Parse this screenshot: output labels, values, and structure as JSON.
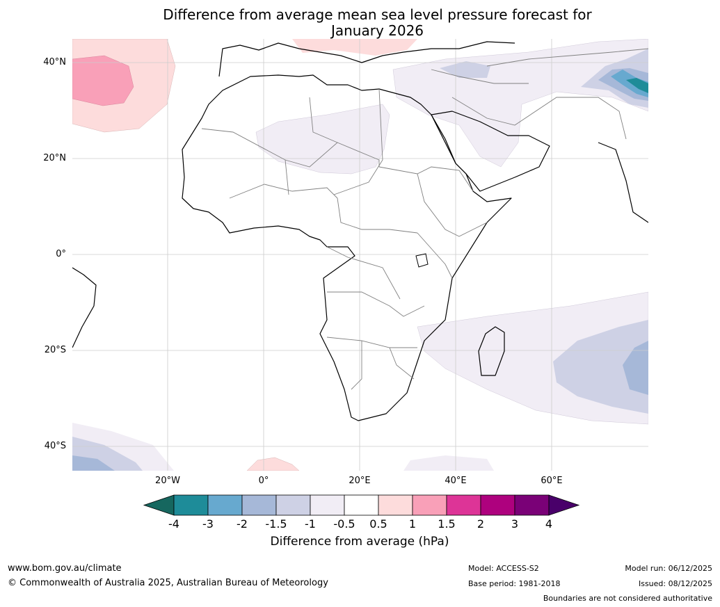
{
  "map": {
    "title_line1": "Difference from average mean sea level pressure forecast for",
    "title_line2": "January 2026",
    "lat_labels": [
      "40°N",
      "20°N",
      "0°",
      "20°S",
      "40°S"
    ],
    "lon_labels": [
      "20°W",
      "0°",
      "20°E",
      "40°E",
      "60°E"
    ]
  },
  "colorbar": {
    "label": "Difference from average (hPa)",
    "ticks": [
      "-4",
      "-3",
      "-2",
      "-1.5",
      "-1",
      "-0.5",
      "0.5",
      "1",
      "1.5",
      "2",
      "3",
      "4"
    ],
    "colors": [
      "#16675f",
      "#1e8c99",
      "#67a9cf",
      "#a6b8d8",
      "#ced1e5",
      "#f1edf5",
      "#ffffff",
      "#fddcdc",
      "#f9a0b8",
      "#dd3497",
      "#ae017e",
      "#7a0177",
      "#49006a"
    ]
  },
  "footer": {
    "url": "www.bom.gov.au/climate",
    "copyright": "© Commonwealth of Australia 2025, Australian Bureau of Meteorology",
    "model": "Model: ACCESS-S2",
    "base_period": "Base period: 1981-2018",
    "model_run": "Model run: 06/12/2025",
    "issued": "Issued: 08/12/2025",
    "disclaimer": "Boundaries are not considered authoritative"
  }
}
